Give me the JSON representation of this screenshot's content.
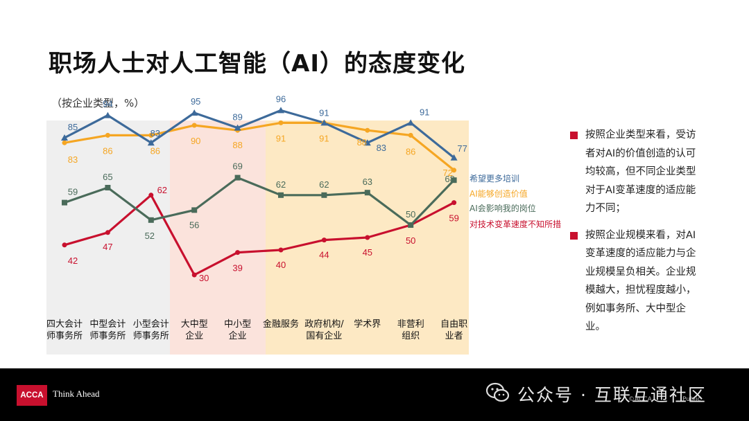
{
  "title": "职场人士对人工智能（AI）的态度变化",
  "subtitle": "（按企业类型，%）",
  "chart_data": {
    "type": "line",
    "categories": [
      [
        "四大会计",
        "师事务所"
      ],
      [
        "中型会计",
        "师事务所"
      ],
      [
        "小型会计",
        "师事务所"
      ],
      [
        "大中型",
        "企业"
      ],
      [
        "中小型",
        "企业"
      ],
      [
        "金融服务"
      ],
      [
        "政府机构/",
        "国有企业"
      ],
      [
        "学术界"
      ],
      [
        "非营利",
        "组织"
      ],
      [
        "自由职",
        "业者"
      ]
    ],
    "series": [
      {
        "name": "希望更多培训",
        "color": "#3d6a9a",
        "values": [
          85,
          94,
          83,
          95,
          89,
          96,
          91,
          83,
          91,
          77
        ]
      },
      {
        "name": "AI能够创造价值",
        "color": "#f5a623",
        "values": [
          83,
          86,
          86,
          90,
          88,
          91,
          91,
          88,
          86,
          72
        ]
      },
      {
        "name": "AI会影响我的岗位",
        "color": "#4a6b5a",
        "values": [
          59,
          65,
          52,
          56,
          69,
          62,
          62,
          63,
          50,
          68
        ]
      },
      {
        "name": "对技术变革速度不知所措",
        "color": "#c8102e",
        "values": [
          42,
          47,
          62,
          30,
          39,
          40,
          44,
          45,
          50,
          59
        ]
      }
    ],
    "ylim": [
      20,
      100
    ],
    "background_bands": [
      {
        "from": 0,
        "to": 2,
        "color": "#efefef"
      },
      {
        "from": 3,
        "to": 4,
        "color": "#fbe3dc"
      },
      {
        "from": 5,
        "to": 9,
        "color": "#fde9c4"
      }
    ]
  },
  "bullets": [
    "按照企业类型来看，受访者对AI的价值创造的认可均较高，但不同企业类型对于AI变革速度的适应能力不同；",
    "按照企业规模来看，对AI变革速度的适应能力与企业规模呈负相关。企业规模越大，担忧程度越小，例如事务所、大中型企业。"
  ],
  "footer": {
    "logo": "ACCA",
    "tagline": "Think Ahead",
    "watermark": "公众号 · 互联互通社区",
    "small_left": "©ACCA",
    "small_right": "Public"
  }
}
